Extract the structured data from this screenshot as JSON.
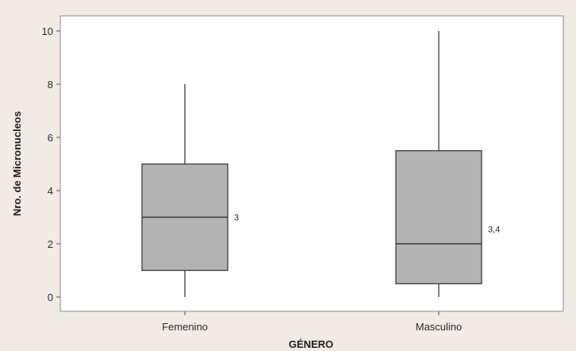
{
  "chart_data": {
    "type": "boxplot",
    "title": "",
    "xlabel": "GÉNERO",
    "ylabel": "Nro. de Micronucleos",
    "ylim": [
      0,
      10
    ],
    "yticks": [
      0,
      2,
      4,
      6,
      8,
      10
    ],
    "grid": false,
    "categories": [
      "Femenino",
      "Masculino"
    ],
    "boxes": [
      {
        "category": "Femenino",
        "min": 0,
        "q1": 1,
        "median": 3,
        "q3": 5,
        "max": 8,
        "annotation": "3"
      },
      {
        "category": "Masculino",
        "min": 0,
        "q1": 0.5,
        "median": 2,
        "q3": 5.5,
        "max": 10,
        "annotation": "3,4"
      }
    ],
    "box_fill": "#b3b3b3",
    "box_stroke": "#3a3a3a",
    "plot_background": "#ffffff",
    "page_background": "#f0ebe3"
  }
}
